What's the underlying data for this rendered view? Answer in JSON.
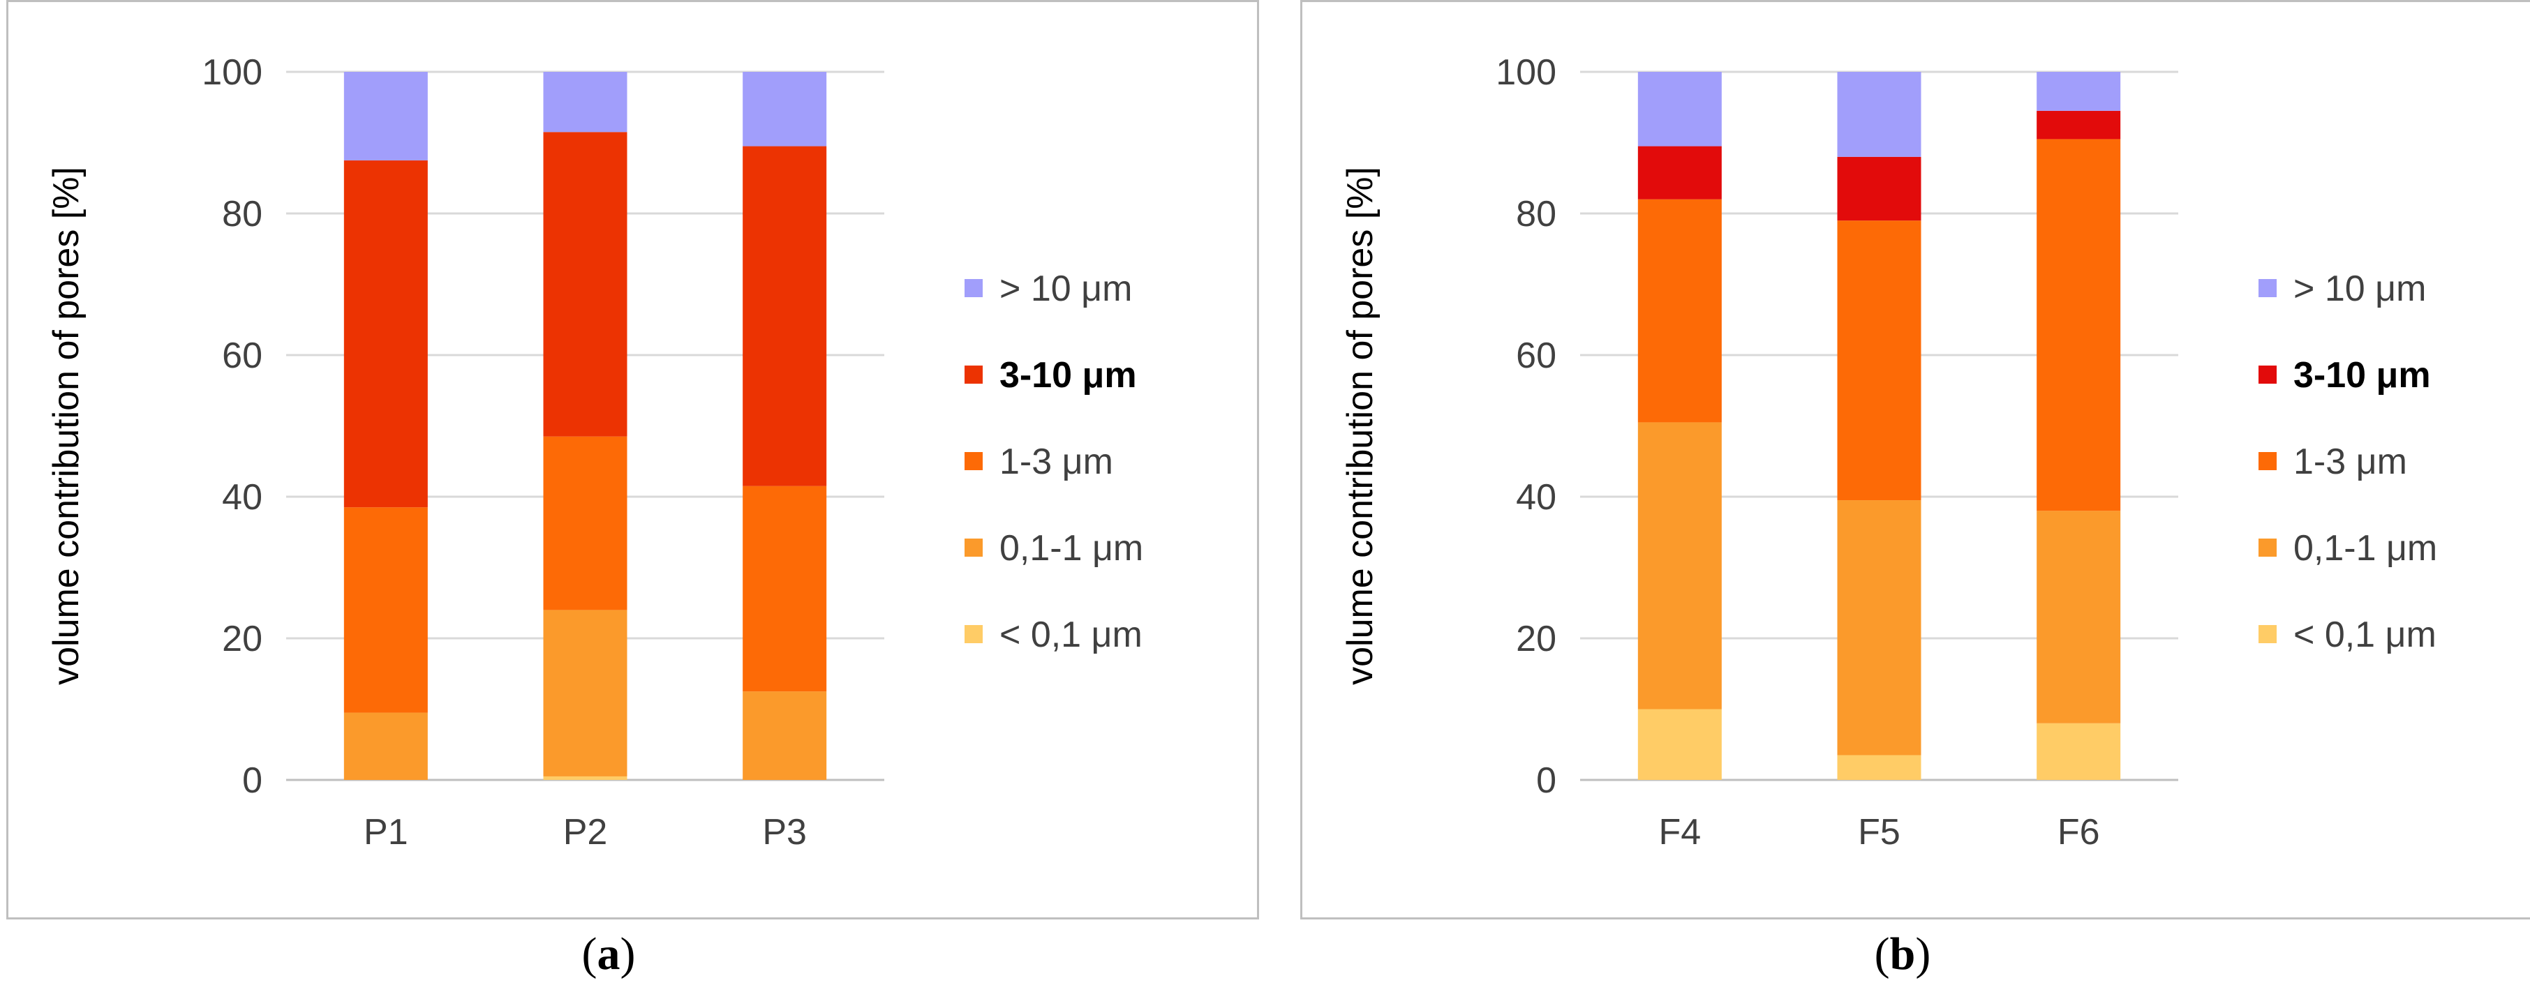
{
  "colors": {
    "lt01": "#ffcc66",
    "s01_1": "#fb9a2b",
    "s1_3": "#fd6a06",
    "s3_10_a": "#ec3302",
    "s3_10_b": "#e20b0b",
    "gt10": "#a19efb",
    "grid": "#d9d9d9",
    "axis": "#bfbfbf",
    "text": "#404040"
  },
  "chart_data": [
    {
      "id": "a",
      "type": "bar",
      "stacked": true,
      "caption": "a",
      "ylabel": "volume contribution of pores [%]",
      "ylim": [
        0,
        100
      ],
      "yticks": [
        0,
        20,
        40,
        60,
        80,
        100
      ],
      "categories": [
        "P1",
        "P2",
        "P3"
      ],
      "series": [
        {
          "name": "< 0,1 μm",
          "color_key": "lt01",
          "values": [
            0,
            0.5,
            0
          ]
        },
        {
          "name": "0,1-1 μm",
          "color_key": "s01_1",
          "values": [
            9.5,
            23.5,
            12.5
          ]
        },
        {
          "name": "1-3 μm",
          "color_key": "s1_3",
          "values": [
            29,
            24.5,
            29
          ]
        },
        {
          "name": "3-10 μm",
          "color_key": "s3_10_a",
          "values": [
            49,
            43,
            48
          ],
          "bold": true
        },
        {
          "name": "> 10 μm",
          "color_key": "gt10",
          "values": [
            12.5,
            8.5,
            10.5
          ]
        }
      ]
    },
    {
      "id": "b",
      "type": "bar",
      "stacked": true,
      "caption": "b",
      "ylabel": "volume contribution of pores [%]",
      "ylim": [
        0,
        100
      ],
      "yticks": [
        0,
        20,
        40,
        60,
        80,
        100
      ],
      "categories": [
        "F4",
        "F5",
        "F6"
      ],
      "series": [
        {
          "name": "< 0,1 μm",
          "color_key": "lt01",
          "values": [
            10,
            3.5,
            8
          ]
        },
        {
          "name": "0,1-1 μm",
          "color_key": "s01_1",
          "values": [
            40.5,
            36,
            30
          ]
        },
        {
          "name": "1-3 μm",
          "color_key": "s1_3",
          "values": [
            31.5,
            39.5,
            52.5
          ]
        },
        {
          "name": "3-10 μm",
          "color_key": "s3_10_b",
          "values": [
            7.5,
            9,
            4
          ],
          "bold": true
        },
        {
          "name": "> 10 μm",
          "color_key": "gt10",
          "values": [
            10.5,
            12,
            5.5
          ]
        }
      ]
    }
  ]
}
